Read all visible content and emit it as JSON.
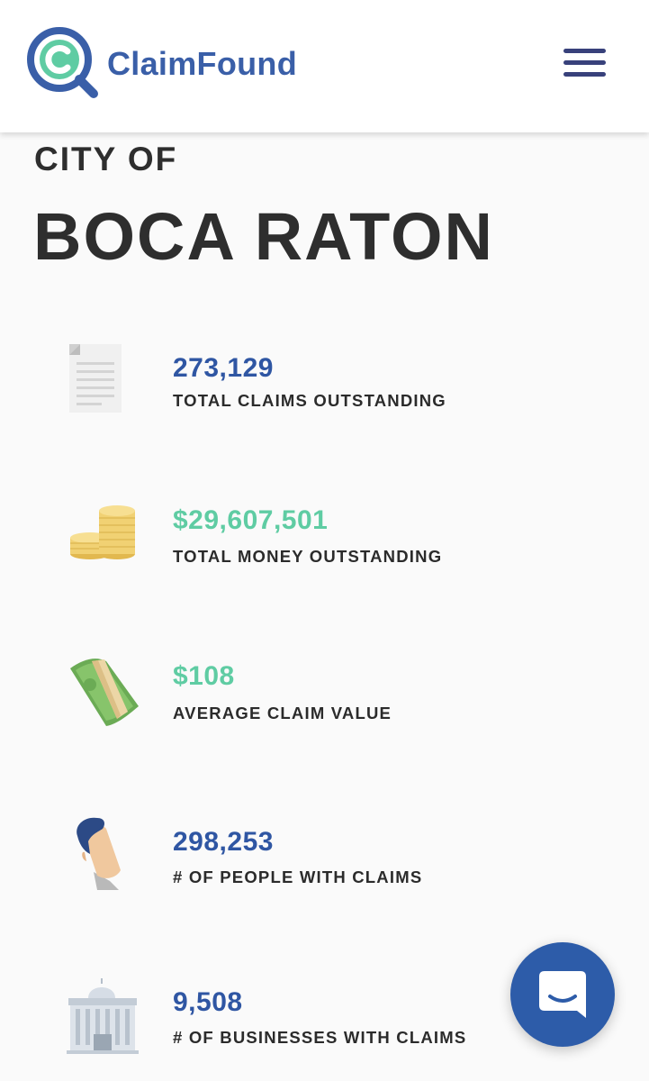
{
  "header": {
    "logo_text": "ClaimFound",
    "logo_icon": "magnifier-c-logo",
    "menu_icon": "hamburger-icon",
    "colors": {
      "brand_blue": "#3a5fa8",
      "brand_green": "#5fcca3",
      "menu": "#38417b"
    }
  },
  "hero": {
    "prefix": "CITY OF",
    "city": "BOCA RATON"
  },
  "stats": [
    {
      "icon": "document-icon",
      "value": "273,129",
      "label": "TOTAL CLAIMS OUTSTANDING",
      "accent": "#2f56a3"
    },
    {
      "icon": "coins-icon",
      "value": "$29,607,501",
      "label": "TOTAL MONEY OUTSTANDING",
      "accent": "#5fcca3"
    },
    {
      "icon": "cash-bundle-icon",
      "value": "$108",
      "label": "AVERAGE CLAIM VALUE",
      "accent": "#5fcca3"
    },
    {
      "icon": "person-icon",
      "value": "298,253",
      "label": "# OF PEOPLE WITH CLAIMS",
      "accent": "#2f56a3"
    },
    {
      "icon": "building-icon",
      "value": "9,508",
      "label": "# OF BUSINESSES WITH CLAIMS",
      "accent": "#2f56a3"
    }
  ],
  "chat": {
    "icon": "chat-bubble-icon",
    "color": "#2d5ca9"
  }
}
